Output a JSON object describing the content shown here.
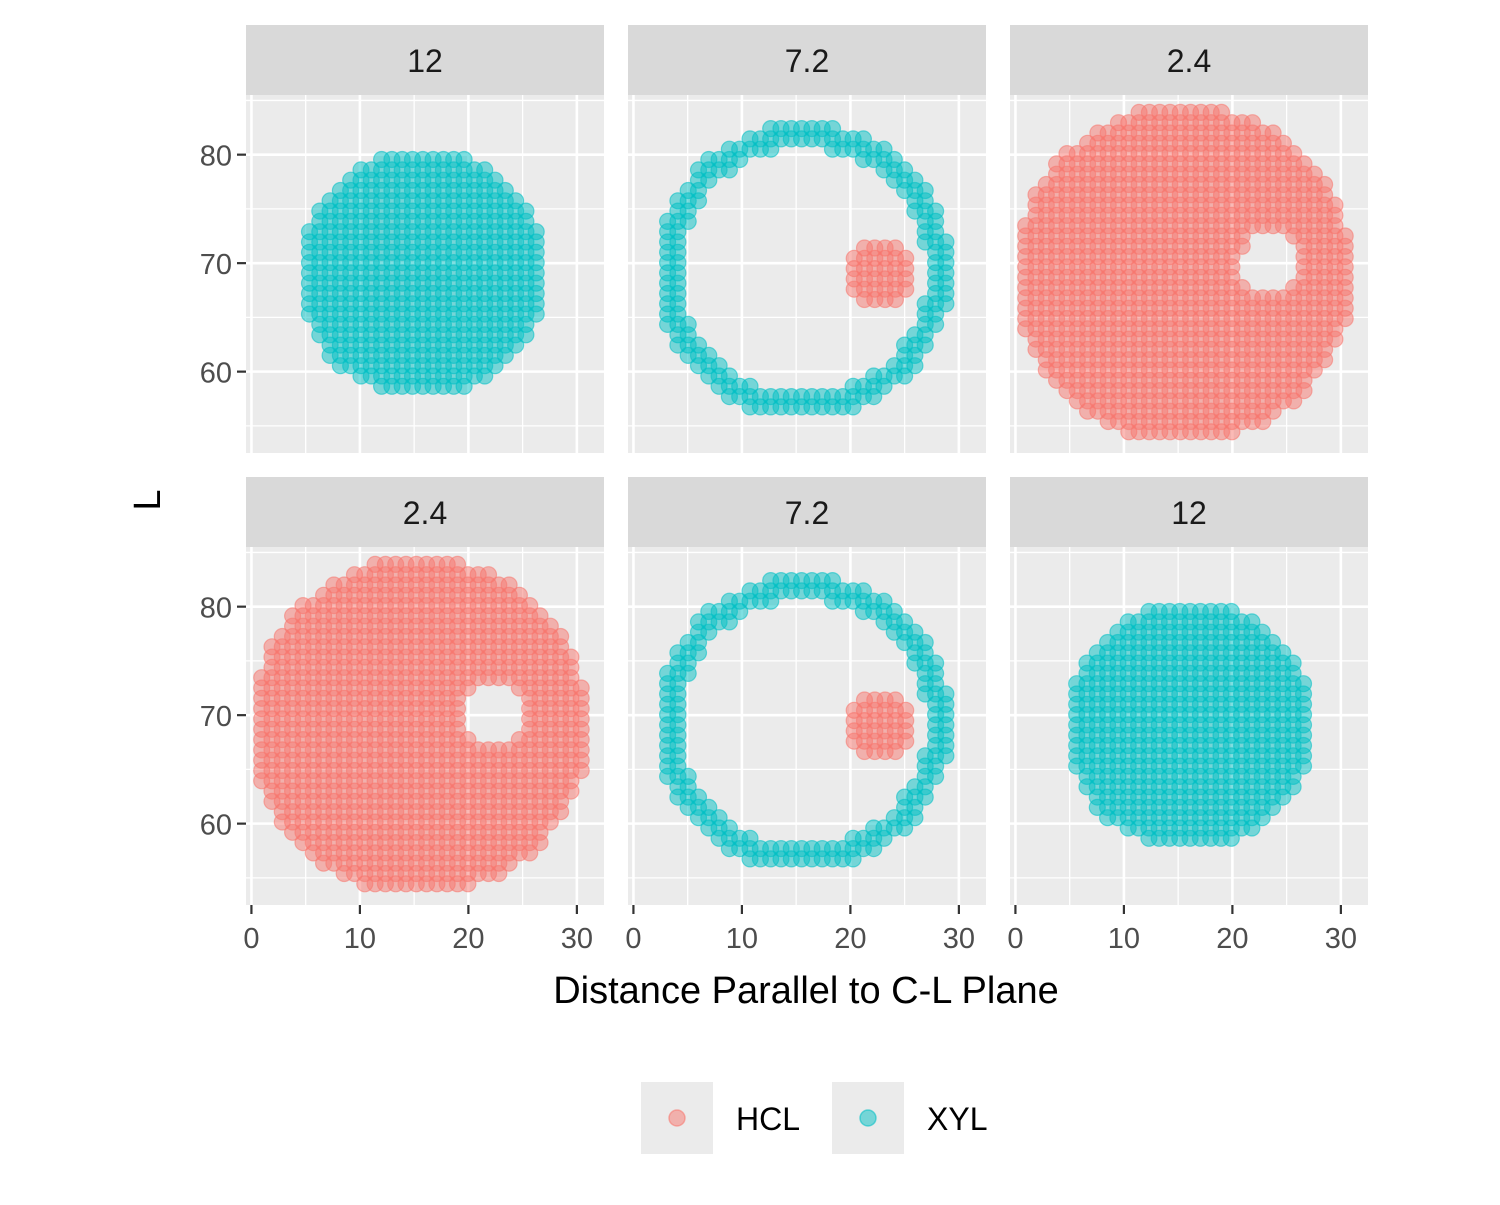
{
  "chart_data": {
    "type": "scatter",
    "title": "",
    "xlabel": "Distance Parallel to C-L Plane",
    "ylabel": "L",
    "xlim": [
      -0.5,
      32.5
    ],
    "ylim": [
      52.5,
      85.5
    ],
    "x_ticks": [
      "0",
      "10",
      "20",
      "30"
    ],
    "x_tick_values": [
      0,
      10,
      20,
      30
    ],
    "y_ticks": [
      "60",
      "70",
      "80"
    ],
    "y_tick_values": [
      60,
      70,
      80
    ],
    "grid": true,
    "legend_position": "bottom",
    "colors": {
      "HCL": "#F8766D",
      "XYL": "#00BFC4"
    },
    "legend": [
      {
        "label": "HCL",
        "color": "#F8766D"
      },
      {
        "label": "XYL",
        "color": "#00BFC4"
      }
    ],
    "panels": [
      {
        "strip": "12",
        "series": [
          {
            "name": "XYL",
            "shape": "disc",
            "center": [
              15.7,
              69.0
            ],
            "radius": 11.3
          }
        ]
      },
      {
        "strip": "7.2",
        "series": [
          {
            "name": "XYL",
            "shape": "ring",
            "center": [
              15.7,
              69.3
            ],
            "outer_radius": 13.5,
            "inner_radius": 11.5
          },
          {
            "name": "HCL",
            "shape": "disc",
            "center": [
              22.7,
              69.0
            ],
            "radius": 3.3
          }
        ]
      },
      {
        "strip": "2.4",
        "series": [
          {
            "name": "HCL",
            "shape": "disc-with-hole",
            "center": [
              15.5,
              69.0
            ],
            "radius": 15.5,
            "hole_center": [
              23.5,
              70.0
            ],
            "hole_radius": 3.0
          }
        ]
      },
      {
        "strip": "2.4",
        "series": [
          {
            "name": "HCL",
            "shape": "disc-with-hole",
            "center": [
              15.5,
              69.0
            ],
            "radius": 15.5,
            "hole_center": [
              22.5,
              70.0
            ],
            "hole_radius": 3.0
          }
        ]
      },
      {
        "strip": "7.2",
        "series": [
          {
            "name": "XYL",
            "shape": "ring",
            "center": [
              15.7,
              69.3
            ],
            "outer_radius": 13.5,
            "inner_radius": 11.5
          },
          {
            "name": "HCL",
            "shape": "disc",
            "center": [
              22.7,
              69.0
            ],
            "radius": 3.3
          }
        ]
      },
      {
        "strip": "12",
        "series": [
          {
            "name": "XYL",
            "shape": "disc",
            "center": [
              16.0,
              69.0
            ],
            "radius": 11.3
          }
        ]
      }
    ]
  }
}
